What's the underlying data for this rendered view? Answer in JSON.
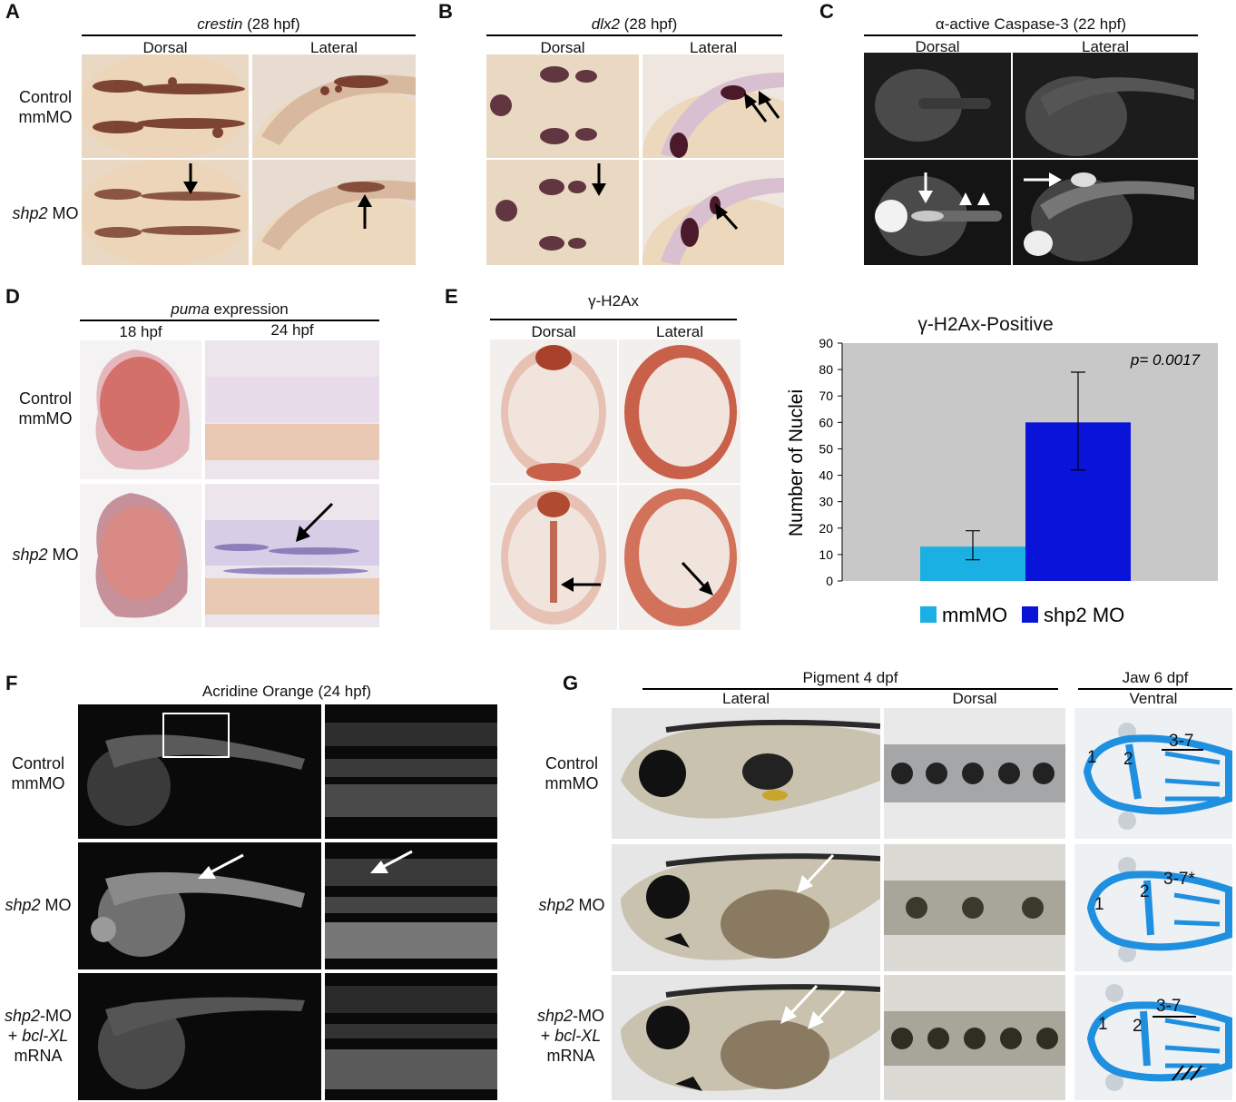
{
  "panels": {
    "A": {
      "label": "A",
      "title_italic": "crestin",
      "title_rest": " (28 hpf)",
      "col1": "Dorsal",
      "col2": "Lateral"
    },
    "B": {
      "label": "B",
      "title_italic": "dlx2",
      "title_rest": " (28 hpf)",
      "col1": "Dorsal",
      "col2": "Lateral"
    },
    "C": {
      "label": "C",
      "title": "α-active Caspase-3 (22 hpf)",
      "col1": "Dorsal",
      "col2": "Lateral"
    },
    "D": {
      "label": "D",
      "title_italic": "puma",
      "title_rest": " expression",
      "col1": "18 hpf",
      "col2": "24 hpf"
    },
    "E": {
      "label": "E",
      "title": "γ-H2Ax",
      "col1": "Dorsal",
      "col2": "Lateral"
    },
    "F": {
      "label": "F",
      "title": "Acridine Orange (24 hpf)"
    },
    "G": {
      "label": "G",
      "group1": "Pigment 4 dpf",
      "group2": "Jaw 6 dpf",
      "col1": "Lateral",
      "col2": "Dorsal",
      "col3": "Ventral",
      "jaw_labels": {
        "r1": [
          "1",
          "2",
          "3-7"
        ],
        "r2": [
          "1",
          "2",
          "3-7*"
        ],
        "r3": [
          "1",
          "2",
          "3-7"
        ]
      }
    }
  },
  "rows": {
    "control_1": "Control",
    "control_2": "mmMO",
    "shp2_italic": "shp2",
    "shp2_rest": " MO",
    "rescue_italic": "shp2",
    "rescue_rest": "-MO",
    "rescue_plus": "+ ",
    "rescue_bcl": "bcl-XL",
    "rescue_mrna": "mRNA"
  },
  "chart_data": {
    "type": "bar",
    "title": "γ-H2Ax-Positive",
    "ylabel": "Number of Nuclei",
    "xlabel": "",
    "ylim": [
      0,
      90
    ],
    "yticks": [
      0,
      10,
      20,
      30,
      40,
      50,
      60,
      70,
      80,
      90
    ],
    "categories": [
      "mmMO",
      "shp2 MO"
    ],
    "values": [
      13,
      60
    ],
    "error": [
      [
        8,
        19
      ],
      [
        42,
        79
      ]
    ],
    "colors": [
      "#1ab0e3",
      "#0a14d8"
    ],
    "annotation": "p= 0.0017",
    "legend": [
      {
        "name": "mmMO",
        "color": "#1ab0e3"
      },
      {
        "name": "shp2 MO",
        "color": "#0a14d8"
      }
    ],
    "legend_position": "bottom",
    "grid": false,
    "background": "#c8c8c8"
  }
}
